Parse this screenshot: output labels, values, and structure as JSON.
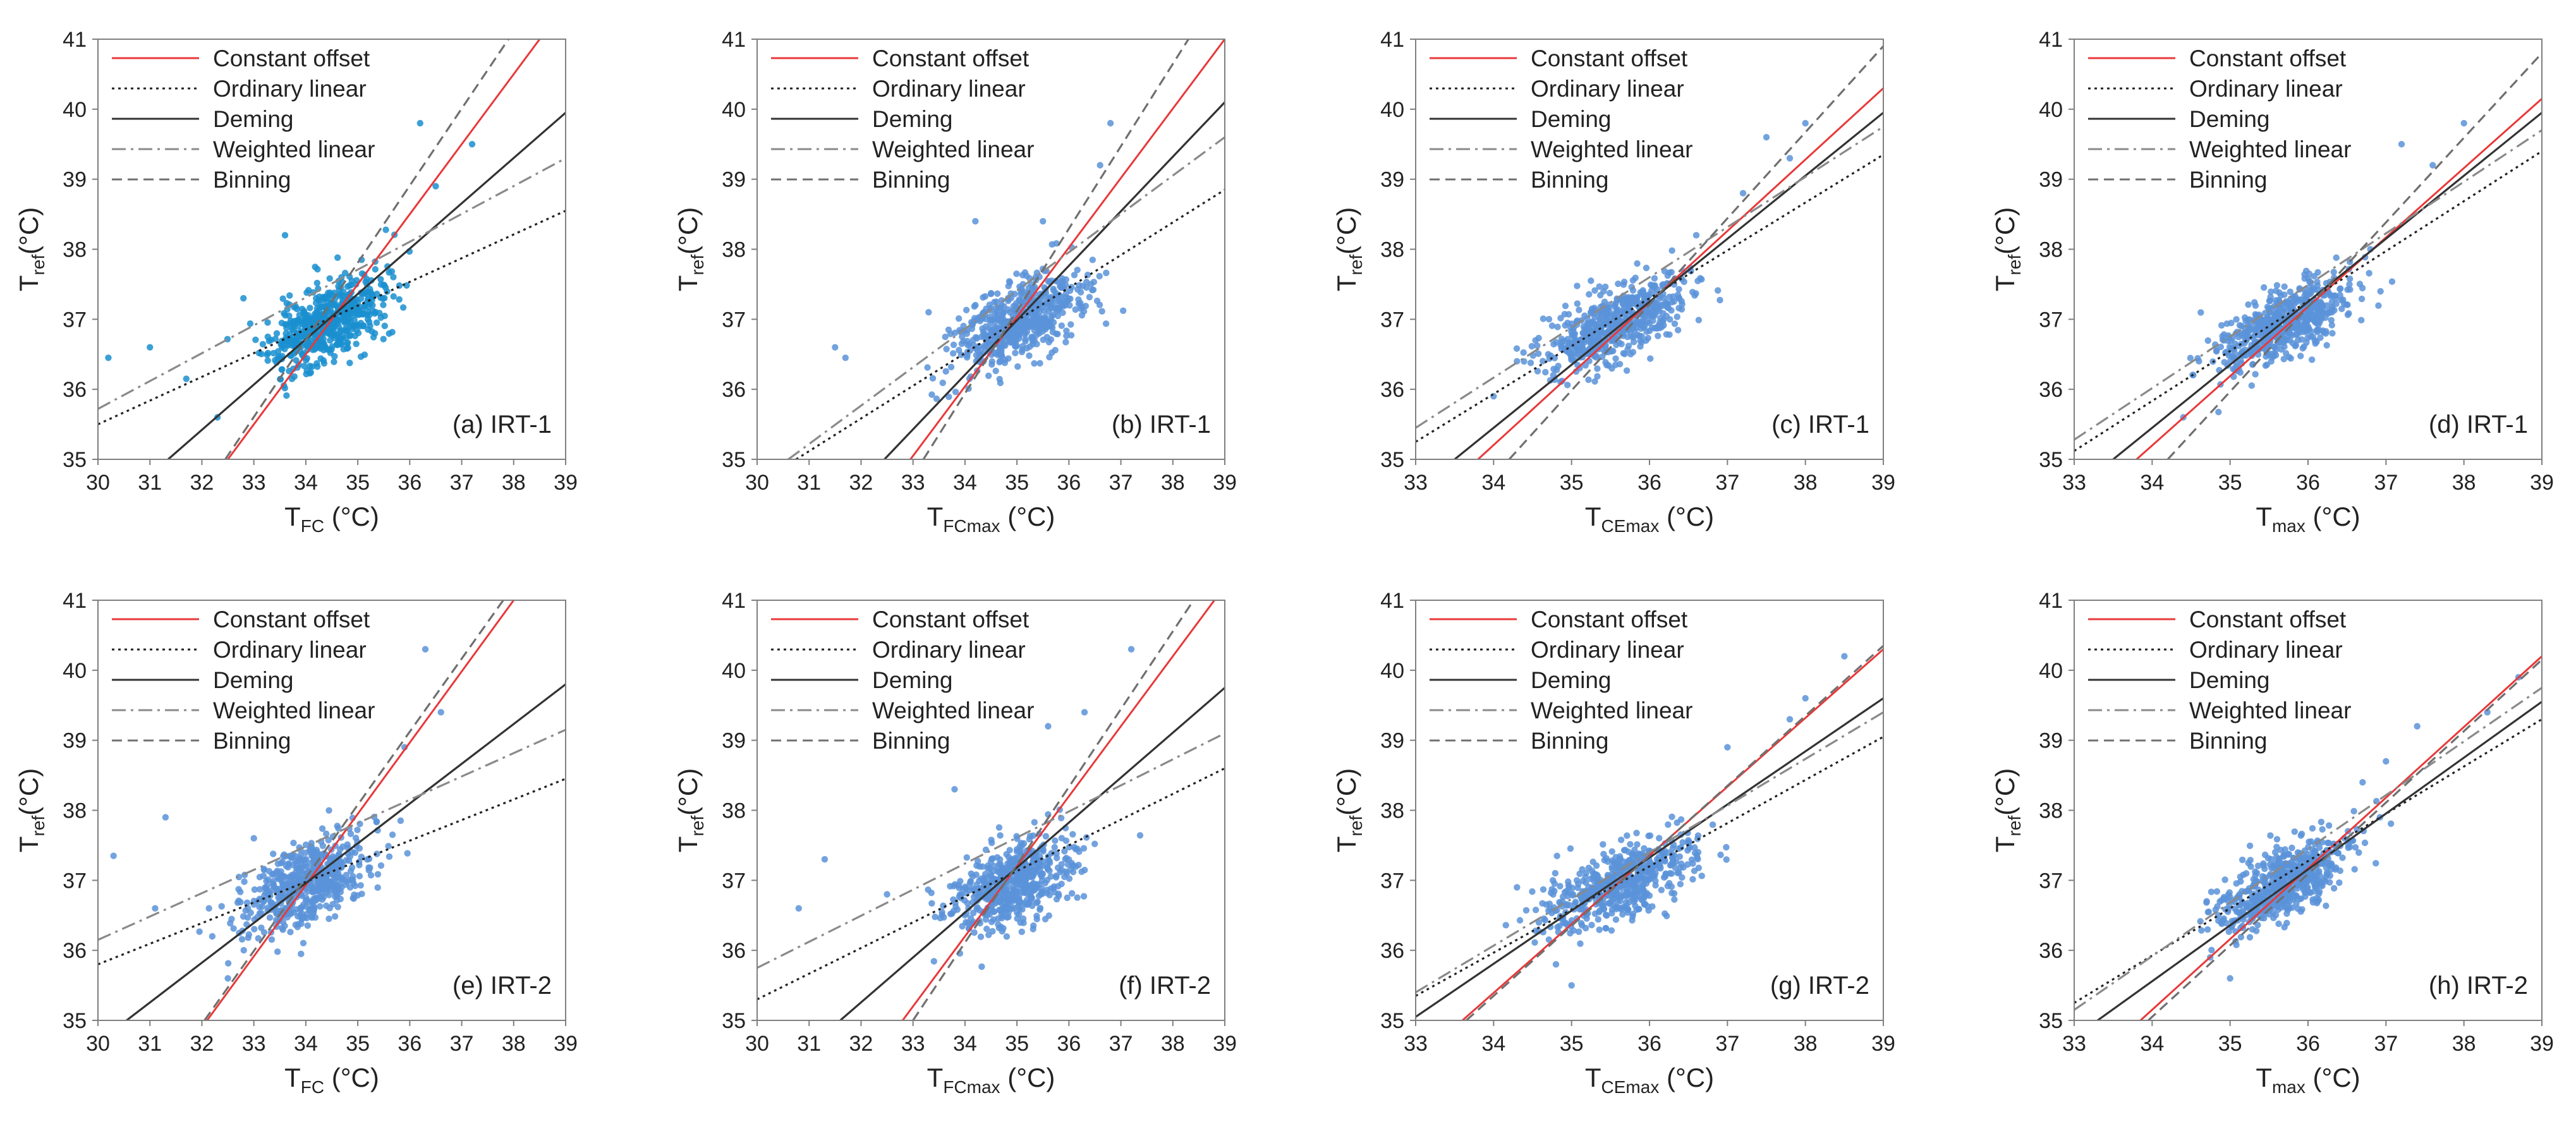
{
  "figure": {
    "caption_visible": false,
    "units": "°C"
  },
  "legend": [
    {
      "key": "constant",
      "label": "Constant offset",
      "color": "#e8393a",
      "dash": "solid"
    },
    {
      "key": "ordinary",
      "label": "Ordinary linear",
      "color": "#222222",
      "dash": "dotted"
    },
    {
      "key": "deming",
      "label": "Deming",
      "color": "#333333",
      "dash": "solid"
    },
    {
      "key": "weighted",
      "label": "Weighted linear",
      "color": "#8a8a8a",
      "dash": "dashdot"
    },
    {
      "key": "binning",
      "label": "Binning",
      "color": "#707070",
      "dash": "dashed"
    }
  ],
  "chart_data": [
    {
      "id": "a",
      "type": "scatter",
      "label": "(a) IRT-1",
      "xlabel": {
        "main": "T",
        "sub": "FC",
        "unit": " (°C)"
      },
      "ylabel": {
        "main": "T",
        "sub": "ref",
        "unit": "(°C)"
      },
      "xlim": [
        30,
        39
      ],
      "ylim": [
        35,
        41
      ],
      "xticks": [
        30,
        31,
        32,
        33,
        34,
        35,
        36,
        37,
        38,
        39
      ],
      "yticks": [
        35,
        36,
        37,
        38,
        39,
        40,
        41
      ],
      "cloud": {
        "cx": 34.4,
        "cy": 36.95,
        "sx": 0.55,
        "sy": 0.33,
        "r": 0.55,
        "n": 560,
        "seed": 11,
        "outlier_x": [
          30.2,
          31.0,
          31.7,
          32.3,
          36.2,
          36.5,
          37.2,
          33.6,
          32.8
        ],
        "outlier_y": [
          36.45,
          36.6,
          36.15,
          35.6,
          39.8,
          38.9,
          39.5,
          38.2,
          37.3
        ]
      },
      "point_color": "#1a8fd0",
      "lines": {
        "constant": [
          [
            32.5,
            35
          ],
          [
            38.5,
            41
          ]
        ],
        "ordinary": [
          [
            30,
            35.5
          ],
          [
            39,
            38.55
          ]
        ],
        "deming": [
          [
            31.35,
            35
          ],
          [
            39,
            39.95
          ]
        ],
        "weighted": [
          [
            30,
            35.72
          ],
          [
            39,
            39.3
          ]
        ],
        "binning": [
          [
            32.45,
            35
          ],
          [
            37.9,
            41
          ]
        ]
      }
    },
    {
      "id": "b",
      "type": "scatter",
      "label": "(b) IRT-1",
      "xlabel": {
        "main": "T",
        "sub": "FCmax",
        "unit": " (°C)"
      },
      "ylabel": {
        "main": "T",
        "sub": "ref",
        "unit": "(°C)"
      },
      "xlim": [
        30,
        39
      ],
      "ylim": [
        35,
        41
      ],
      "xticks": [
        30,
        31,
        32,
        33,
        34,
        35,
        36,
        37,
        38,
        39
      ],
      "yticks": [
        35,
        36,
        37,
        38,
        39,
        40,
        41
      ],
      "cloud": {
        "cx": 35.0,
        "cy": 36.95,
        "sx": 0.6,
        "sy": 0.33,
        "r": 0.55,
        "n": 560,
        "seed": 23,
        "outlier_x": [
          31.5,
          31.7,
          36.8,
          36.6,
          35.5,
          34.2,
          33.3
        ],
        "outlier_y": [
          36.6,
          36.45,
          39.8,
          39.2,
          38.4,
          38.4,
          37.1
        ]
      },
      "point_color": "#5b93d9",
      "lines": {
        "constant": [
          [
            32.95,
            35
          ],
          [
            39,
            41
          ]
        ],
        "ordinary": [
          [
            30.75,
            35
          ],
          [
            39,
            38.85
          ]
        ],
        "deming": [
          [
            32.45,
            35
          ],
          [
            39,
            40.1
          ]
        ],
        "weighted": [
          [
            30.6,
            35
          ],
          [
            39,
            39.6
          ]
        ],
        "binning": [
          [
            33.2,
            35
          ],
          [
            38.3,
            41
          ]
        ]
      }
    },
    {
      "id": "c",
      "type": "scatter",
      "label": "(c) IRT-1",
      "xlabel": {
        "main": "T",
        "sub": "CEmax",
        "unit": " (°C)"
      },
      "ylabel": {
        "main": "T",
        "sub": "ref",
        "unit": "(°C)"
      },
      "xlim": [
        33,
        39
      ],
      "ylim": [
        35,
        41
      ],
      "xticks": [
        33,
        34,
        35,
        36,
        37,
        38,
        39
      ],
      "yticks": [
        35,
        36,
        37,
        38,
        39,
        40,
        41
      ],
      "cloud": {
        "cx": 35.6,
        "cy": 36.95,
        "sx": 0.45,
        "sy": 0.33,
        "r": 0.65,
        "n": 560,
        "seed": 37,
        "outlier_x": [
          37.5,
          37.8,
          37.2,
          38.0,
          34.3,
          34.0,
          36.6
        ],
        "outlier_y": [
          39.6,
          39.3,
          38.8,
          39.8,
          36.4,
          35.9,
          38.2
        ]
      },
      "point_color": "#5b93d9",
      "lines": {
        "constant": [
          [
            33.8,
            35
          ],
          [
            39,
            40.3
          ]
        ],
        "ordinary": [
          [
            33,
            35.25
          ],
          [
            39,
            39.35
          ]
        ],
        "deming": [
          [
            33.5,
            35
          ],
          [
            39,
            39.95
          ]
        ],
        "weighted": [
          [
            33,
            35.45
          ],
          [
            39,
            39.75
          ]
        ],
        "binning": [
          [
            34.2,
            35
          ],
          [
            39,
            40.9
          ]
        ]
      }
    },
    {
      "id": "d",
      "type": "scatter",
      "label": "(d) IRT-1",
      "xlabel": {
        "main": "T",
        "sub": "max",
        "unit": " (°C)"
      },
      "ylabel": {
        "main": "T",
        "sub": "ref",
        "unit": "(°C)"
      },
      "xlim": [
        33,
        39
      ],
      "ylim": [
        35,
        41
      ],
      "xticks": [
        33,
        34,
        35,
        36,
        37,
        38,
        39
      ],
      "yticks": [
        35,
        36,
        37,
        38,
        39,
        40,
        41
      ],
      "cloud": {
        "cx": 35.7,
        "cy": 36.95,
        "sx": 0.42,
        "sy": 0.33,
        "r": 0.65,
        "n": 560,
        "seed": 41,
        "outlier_x": [
          37.2,
          37.6,
          38.0,
          34.6,
          34.4,
          36.8
        ],
        "outlier_y": [
          39.5,
          39.2,
          39.8,
          36.4,
          35.6,
          38.0
        ]
      },
      "point_color": "#5b93d9",
      "lines": {
        "constant": [
          [
            33.8,
            35
          ],
          [
            39,
            40.15
          ]
        ],
        "ordinary": [
          [
            33,
            35.12
          ],
          [
            39,
            39.4
          ]
        ],
        "deming": [
          [
            33.5,
            35
          ],
          [
            39,
            39.95
          ]
        ],
        "weighted": [
          [
            33,
            35.28
          ],
          [
            39,
            39.7
          ]
        ],
        "binning": [
          [
            34.2,
            35
          ],
          [
            39,
            40.8
          ]
        ]
      }
    },
    {
      "id": "e",
      "type": "scatter",
      "label": "(e) IRT-2",
      "xlabel": {
        "main": "T",
        "sub": "FC",
        "unit": " (°C)"
      },
      "ylabel": {
        "main": "T",
        "sub": "ref",
        "unit": "(°C)"
      },
      "xlim": [
        30,
        39
      ],
      "ylim": [
        35,
        41
      ],
      "xticks": [
        30,
        31,
        32,
        33,
        34,
        35,
        36,
        37,
        38,
        39
      ],
      "yticks": [
        35,
        36,
        37,
        38,
        39,
        40,
        41
      ],
      "cloud": {
        "cx": 34.0,
        "cy": 36.95,
        "sx": 0.6,
        "sy": 0.33,
        "r": 0.5,
        "n": 560,
        "seed": 53,
        "outlier_x": [
          30.3,
          31.1,
          31.3,
          32.2,
          32.5,
          36.3,
          36.6,
          35.9,
          33.0
        ],
        "outlier_y": [
          37.35,
          36.6,
          37.9,
          36.2,
          35.6,
          40.3,
          39.4,
          38.9,
          37.6
        ]
      },
      "point_color": "#5b93d9",
      "lines": {
        "constant": [
          [
            32.1,
            35
          ],
          [
            38.0,
            41
          ]
        ],
        "ordinary": [
          [
            30,
            35.8
          ],
          [
            39,
            38.45
          ]
        ],
        "deming": [
          [
            30.55,
            35
          ],
          [
            39,
            39.8
          ]
        ],
        "weighted": [
          [
            30,
            36.15
          ],
          [
            39,
            39.15
          ]
        ],
        "binning": [
          [
            32.05,
            35
          ],
          [
            37.8,
            41
          ]
        ]
      }
    },
    {
      "id": "f",
      "type": "scatter",
      "label": "(f) IRT-2",
      "xlabel": {
        "main": "T",
        "sub": "FCmax",
        "unit": " (°C)"
      },
      "ylabel": {
        "main": "T",
        "sub": "ref",
        "unit": "(°C)"
      },
      "xlim": [
        30,
        39
      ],
      "ylim": [
        35,
        41
      ],
      "xticks": [
        30,
        31,
        32,
        33,
        34,
        35,
        36,
        37,
        38,
        39
      ],
      "yticks": [
        35,
        36,
        37,
        38,
        39,
        40,
        41
      ],
      "cloud": {
        "cx": 34.9,
        "cy": 36.95,
        "sx": 0.6,
        "sy": 0.33,
        "r": 0.55,
        "n": 560,
        "seed": 67,
        "outlier_x": [
          30.8,
          31.3,
          32.5,
          37.2,
          36.3,
          35.6,
          33.8
        ],
        "outlier_y": [
          36.6,
          37.3,
          36.8,
          40.3,
          39.4,
          39.2,
          38.3
        ]
      },
      "point_color": "#5b93d9",
      "lines": {
        "constant": [
          [
            32.8,
            35
          ],
          [
            38.8,
            41
          ]
        ],
        "ordinary": [
          [
            30,
            35.3
          ],
          [
            39,
            38.6
          ]
        ],
        "deming": [
          [
            31.6,
            35
          ],
          [
            39,
            39.75
          ]
        ],
        "weighted": [
          [
            30,
            35.75
          ],
          [
            39,
            39.1
          ]
        ],
        "binning": [
          [
            33.0,
            35
          ],
          [
            38.4,
            41
          ]
        ]
      }
    },
    {
      "id": "g",
      "type": "scatter",
      "label": "(g) IRT-2",
      "xlabel": {
        "main": "T",
        "sub": "CEmax",
        "unit": " (°C)"
      },
      "ylabel": {
        "main": "T",
        "sub": "ref",
        "unit": "(°C)"
      },
      "xlim": [
        33,
        39
      ],
      "ylim": [
        35,
        41
      ],
      "xticks": [
        33,
        34,
        35,
        36,
        37,
        38,
        39
      ],
      "yticks": [
        35,
        36,
        37,
        38,
        39,
        40,
        41
      ],
      "cloud": {
        "cx": 35.6,
        "cy": 36.95,
        "sx": 0.5,
        "sy": 0.33,
        "r": 0.65,
        "n": 560,
        "seed": 79,
        "outlier_x": [
          38.5,
          38.0,
          37.8,
          37.0,
          34.3,
          34.8,
          35.0
        ],
        "outlier_y": [
          40.2,
          39.6,
          39.3,
          38.9,
          36.9,
          35.8,
          35.5
        ]
      },
      "point_color": "#5b93d9",
      "lines": {
        "constant": [
          [
            33.6,
            35
          ],
          [
            39,
            40.3
          ]
        ],
        "ordinary": [
          [
            33,
            35.35
          ],
          [
            39,
            39.05
          ]
        ],
        "deming": [
          [
            33,
            35.05
          ],
          [
            39,
            39.6
          ]
        ],
        "weighted": [
          [
            33,
            35.4
          ],
          [
            39,
            39.4
          ]
        ],
        "binning": [
          [
            33.65,
            35
          ],
          [
            39,
            40.35
          ]
        ]
      }
    },
    {
      "id": "h",
      "type": "scatter",
      "label": "(h) IRT-2",
      "xlabel": {
        "main": "T",
        "sub": "max",
        "unit": " (°C)"
      },
      "ylabel": {
        "main": "T",
        "sub": "ref",
        "unit": "(°C)"
      },
      "xlim": [
        33,
        39
      ],
      "ylim": [
        35,
        41
      ],
      "xticks": [
        33,
        34,
        35,
        36,
        37,
        38,
        39
      ],
      "yticks": [
        35,
        36,
        37,
        38,
        39,
        40,
        41
      ],
      "cloud": {
        "cx": 35.7,
        "cy": 36.95,
        "sx": 0.42,
        "sy": 0.33,
        "r": 0.65,
        "n": 560,
        "seed": 97,
        "outlier_x": [
          38.7,
          38.3,
          37.4,
          37.0,
          34.7,
          35.0,
          36.7
        ],
        "outlier_y": [
          39.9,
          39.4,
          39.2,
          38.7,
          36.7,
          35.6,
          38.4
        ]
      },
      "point_color": "#5b93d9",
      "lines": {
        "constant": [
          [
            33.85,
            35
          ],
          [
            39,
            40.2
          ]
        ],
        "ordinary": [
          [
            33,
            35.25
          ],
          [
            39,
            39.3
          ]
        ],
        "deming": [
          [
            33.3,
            35
          ],
          [
            39,
            39.55
          ]
        ],
        "weighted": [
          [
            33,
            35.15
          ],
          [
            39,
            39.75
          ]
        ],
        "binning": [
          [
            33.95,
            35
          ],
          [
            39,
            40.15
          ]
        ]
      }
    }
  ]
}
